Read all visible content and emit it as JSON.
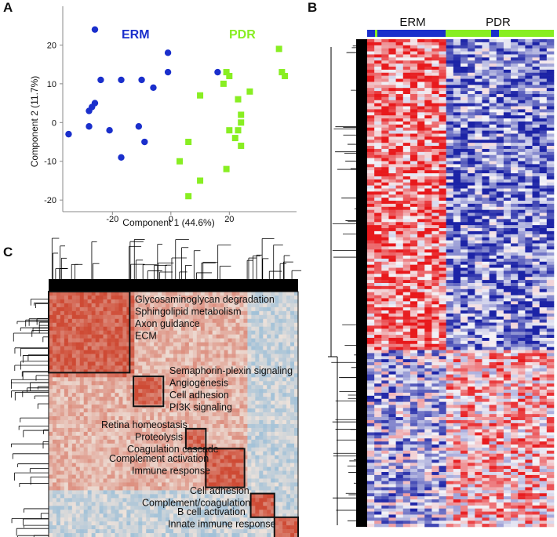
{
  "panels": {
    "a": "A",
    "b": "B",
    "c": "C"
  },
  "pca": {
    "group1_label": "ERM",
    "group2_label": "PDR",
    "colors": {
      "erm": "#1a2fcc",
      "pdr": "#88ee22"
    }
  },
  "heatmap": {
    "group1_label": "ERM",
    "group2_label": "PDR",
    "colors": {
      "high": "#e8191c",
      "low": "#1c23a6",
      "mid": "#f4f4f8"
    }
  },
  "correlation": {
    "modules": [
      {
        "lines": [
          "Glycosaminoglycan degradation",
          "Sphingolipid metabolism",
          "Axon guidance",
          "ECM"
        ]
      },
      {
        "lines": [
          "Semaphorin-plexin signaling",
          "Angiogenesis",
          "Cell adhesion",
          "PI3K signaling"
        ]
      },
      {
        "lines": [
          "Retina homeostasis",
          "Proteolysis",
          "Coagulation cascade"
        ]
      },
      {
        "lines": [
          "Complement activation",
          "Immune response"
        ]
      },
      {
        "lines": [
          "Cell adhesion",
          "Complement/coagulation"
        ]
      },
      {
        "lines": [
          "B cell activation",
          "Innate immune response"
        ]
      }
    ]
  },
  "chart_data": {
    "type": "scatter",
    "title": "",
    "xlabel": "Component 1 (44.6%)",
    "ylabel": "Component 2 (11.7%)",
    "xticks": [
      -20,
      0,
      20
    ],
    "yticks": [
      20,
      10,
      0,
      -10,
      -20
    ],
    "xlim": [
      -37,
      43
    ],
    "ylim": [
      -23,
      30
    ],
    "legend": "inside-top",
    "series": [
      {
        "name": "ERM",
        "marker": "circle",
        "color": "#1a2fcc",
        "x": [
          -26,
          -27,
          -24,
          -17,
          -10,
          -1,
          -1,
          -6,
          16,
          -26,
          -28,
          -28,
          -35,
          -21,
          -11,
          -9,
          -17
        ],
        "y": [
          24,
          4,
          11,
          11,
          11,
          13,
          18,
          9,
          13,
          5,
          3,
          -1,
          -3,
          -2,
          -1,
          -5,
          -9
        ]
      },
      {
        "name": "PDR",
        "marker": "square",
        "color": "#88ee22",
        "x": [
          37,
          38,
          39,
          19,
          20,
          18,
          27,
          10,
          23,
          24,
          24,
          23,
          20,
          22,
          24,
          6,
          3,
          19,
          10,
          6
        ],
        "y": [
          19,
          13,
          12,
          13,
          12,
          10,
          8,
          7,
          6,
          2,
          0,
          -2,
          -2,
          -4,
          -6,
          -5,
          -10,
          -12,
          -15,
          -19
        ]
      }
    ]
  }
}
